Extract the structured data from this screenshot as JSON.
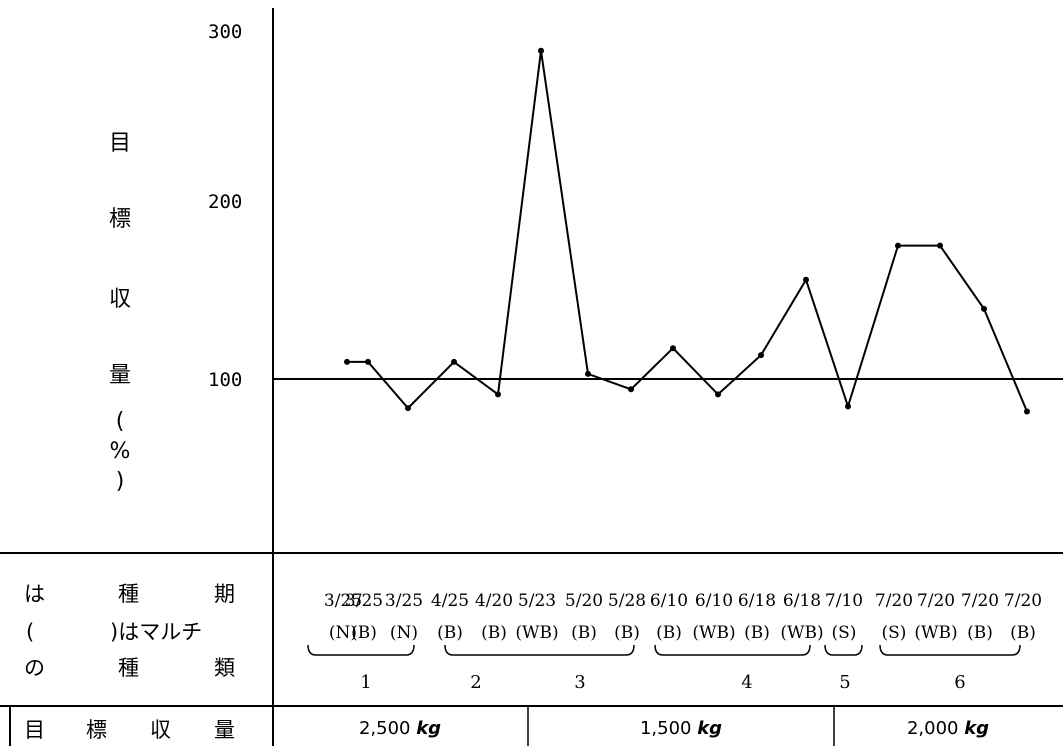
{
  "chart_data": {
    "type": "line",
    "ylabel": "目標収量(%)",
    "yticks": [
      "300",
      "200",
      "100"
    ],
    "ylim": [
      0,
      300
    ],
    "reference_line": 100,
    "x": [
      {
        "date": "3/25",
        "mulch": "(N)"
      },
      {
        "date": "3/25",
        "mulch": "(B)"
      },
      {
        "date": "3/25",
        "mulch": "(N)"
      },
      {
        "date": "4/25",
        "mulch": "(B)"
      },
      {
        "date": "4/20",
        "mulch": "(B)"
      },
      {
        "date": "5/23",
        "mulch": "(WB)"
      },
      {
        "date": "5/20",
        "mulch": "(B)"
      },
      {
        "date": "5/28",
        "mulch": "(B)"
      },
      {
        "date": "6/10",
        "mulch": "(B)"
      },
      {
        "date": "6/10",
        "mulch": "(WB)"
      },
      {
        "date": "6/18",
        "mulch": "(B)"
      },
      {
        "date": "6/18",
        "mulch": "(WB)"
      },
      {
        "date": "7/10",
        "mulch": "(S)"
      },
      {
        "date": "7/20",
        "mulch": "(S)"
      },
      {
        "date": "7/20",
        "mulch": "(WB)"
      },
      {
        "date": "7/20",
        "mulch": "(B)"
      },
      {
        "date": "7/20",
        "mulch": "(B)"
      }
    ],
    "values": [
      110,
      110,
      83,
      110,
      91,
      292,
      103,
      94,
      118,
      91,
      114,
      158,
      84,
      178,
      178,
      141,
      81
    ],
    "groups": [
      "1",
      "2",
      "3",
      "4",
      "5",
      "6"
    ],
    "targets": [
      {
        "value": "2,500",
        "unit": "kg"
      },
      {
        "value": "1,500",
        "unit": "kg"
      },
      {
        "value": "2,000",
        "unit": "kg"
      }
    ]
  },
  "table": {
    "row1_line1": [
      "は",
      "種",
      "期"
    ],
    "row1_line2": [
      "(",
      ")はマルチ"
    ],
    "row1_line3": [
      "の",
      "種",
      "類"
    ],
    "row2": [
      "目",
      "標",
      "収",
      "量"
    ]
  }
}
